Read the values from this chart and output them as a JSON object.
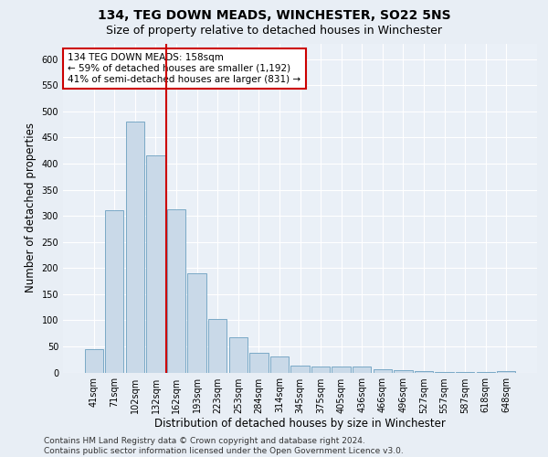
{
  "title": "134, TEG DOWN MEADS, WINCHESTER, SO22 5NS",
  "subtitle": "Size of property relative to detached houses in Winchester",
  "xlabel": "Distribution of detached houses by size in Winchester",
  "ylabel": "Number of detached properties",
  "categories": [
    "41sqm",
    "71sqm",
    "102sqm",
    "132sqm",
    "162sqm",
    "193sqm",
    "223sqm",
    "253sqm",
    "284sqm",
    "314sqm",
    "345sqm",
    "375sqm",
    "405sqm",
    "436sqm",
    "466sqm",
    "496sqm",
    "527sqm",
    "557sqm",
    "587sqm",
    "618sqm",
    "648sqm"
  ],
  "values": [
    45,
    310,
    480,
    415,
    313,
    190,
    102,
    68,
    37,
    30,
    13,
    11,
    12,
    11,
    7,
    5,
    2,
    1,
    1,
    1,
    3
  ],
  "bar_color": "#c9d9e8",
  "bar_edge_color": "#6a9fc0",
  "vline_color": "#cc0000",
  "vline_pos": 3.5,
  "annotation_text": "134 TEG DOWN MEADS: 158sqm\n← 59% of detached houses are smaller (1,192)\n41% of semi-detached houses are larger (831) →",
  "annotation_box_color": "white",
  "annotation_box_edge": "#cc0000",
  "ylim": [
    0,
    630
  ],
  "yticks": [
    0,
    50,
    100,
    150,
    200,
    250,
    300,
    350,
    400,
    450,
    500,
    550,
    600
  ],
  "footer": "Contains HM Land Registry data © Crown copyright and database right 2024.\nContains public sector information licensed under the Open Government Licence v3.0.",
  "background_color": "#e8eef5",
  "plot_bg_color": "#eaf0f7",
  "grid_color": "white",
  "title_fontsize": 10,
  "subtitle_fontsize": 9,
  "axis_label_fontsize": 8.5,
  "tick_fontsize": 7,
  "annotation_fontsize": 7.5,
  "footer_fontsize": 6.5
}
